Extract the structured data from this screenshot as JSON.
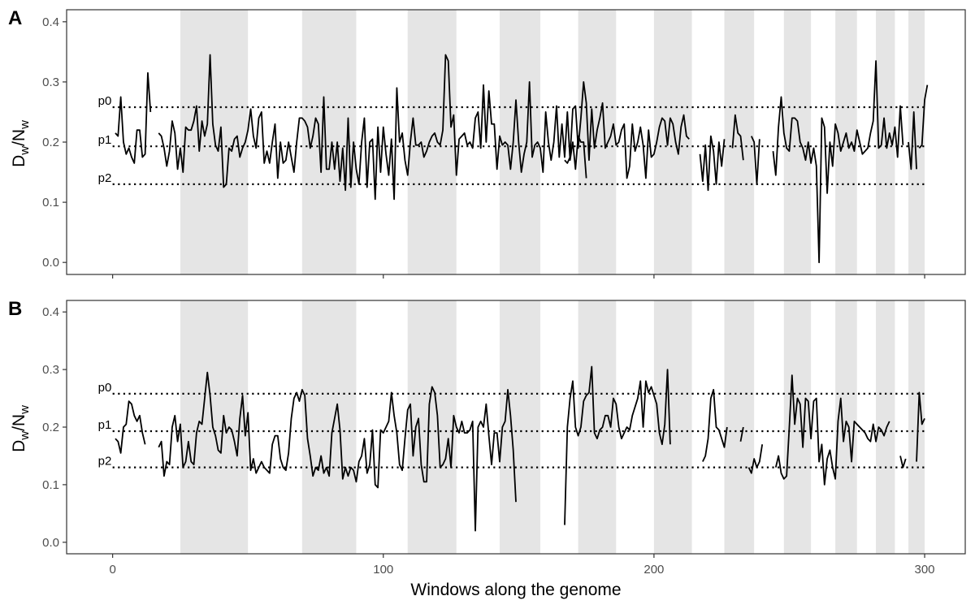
{
  "figure": {
    "xlabel": "Windows along the genome",
    "ylabel_main": "D",
    "ylabel_sub": "w",
    "ylabel_slash": "/N",
    "ylabel_sub2": "w"
  },
  "chart_data": [
    {
      "type": "line",
      "panel_label": "A",
      "xlim": [
        -17,
        315
      ],
      "ylim": [
        -0.02,
        0.42
      ],
      "x_ticks": [
        0,
        100,
        200,
        300
      ],
      "y_ticks": [
        0.0,
        0.1,
        0.2,
        0.3,
        0.4
      ],
      "y_tick_labels": [
        "0.0",
        "0.1",
        "0.2",
        "0.3",
        "0.4"
      ],
      "show_x_tick_labels": false,
      "shaded_regions": [
        [
          25,
          50
        ],
        [
          70,
          90
        ],
        [
          109,
          127
        ],
        [
          143,
          158
        ],
        [
          172,
          186
        ],
        [
          200,
          214
        ],
        [
          226,
          237
        ],
        [
          248,
          258
        ],
        [
          267,
          275
        ],
        [
          282,
          289
        ],
        [
          294,
          300
        ]
      ],
      "reference_lines": [
        {
          "label": "p0",
          "y": 0.258
        },
        {
          "label": "p1",
          "y": 0.193
        },
        {
          "label": "p2",
          "y": 0.13
        }
      ],
      "series": [
        {
          "segments": [
            {
              "x_start": 1,
              "values": [
                0.215,
                0.21,
                0.275,
                0.2,
                0.18,
                0.19,
                0.175,
                0.165,
                0.22,
                0.22,
                0.175,
                0.18,
                0.315,
                0.25
              ]
            },
            {
              "x_start": 17,
              "values": [
                0.215,
                0.21,
                0.19,
                0.16,
                0.185,
                0.235,
                0.215,
                0.155,
                0.19,
                0.15,
                0.225,
                0.22,
                0.22,
                0.235,
                0.26,
                0.185,
                0.235,
                0.21,
                0.23,
                0.345,
                0.23,
                0.195,
                0.185,
                0.225,
                0.125,
                0.13,
                0.19,
                0.185,
                0.205,
                0.21,
                0.175,
                0.19,
                0.2,
                0.22,
                0.255,
                0.21,
                0.19,
                0.24,
                0.25,
                0.165,
                0.185,
                0.165,
                0.2,
                0.23,
                0.14,
                0.2,
                0.165,
                0.17,
                0.2,
                0.175,
                0.15,
                0.2,
                0.24,
                0.24,
                0.235,
                0.225,
                0.19,
                0.21,
                0.24,
                0.23,
                0.15,
                0.275,
                0.155,
                0.155,
                0.2,
                0.155,
                0.2,
                0.135,
                0.19,
                0.12,
                0.24,
                0.125,
                0.2,
                0.155,
                0.13,
                0.2,
                0.24,
                0.125,
                0.2,
                0.205,
                0.105,
                0.225,
                0.15,
                0.225,
                0.18,
                0.145,
                0.205,
                0.105,
                0.29,
                0.2,
                0.215,
                0.17,
                0.145,
                0.2,
                0.24,
                0.195,
                0.195,
                0.2,
                0.175,
                0.185,
                0.2,
                0.21,
                0.215,
                0.2,
                0.195,
                0.22,
                0.345,
                0.335,
                0.225,
                0.245,
                0.145,
                0.205,
                0.21,
                0.215,
                0.195,
                0.2,
                0.19,
                0.24,
                0.25,
                0.19,
                0.295,
                0.2,
                0.285,
                0.23,
                0.23,
                0.155,
                0.21,
                0.195,
                0.2,
                0.195,
                0.155,
                0.2,
                0.27,
                0.2,
                0.15,
                0.18,
                0.2,
                0.3,
                0.175,
                0.195,
                0.2,
                0.19,
                0.15,
                0.25,
                0.2,
                0.17,
                0.2,
                0.26,
                0.175,
                0.23,
                0.175,
                0.25,
                0.17,
                0.2,
                0.155,
                0.21,
                0.2,
                0.2,
                0.14
              ]
            },
            {
              "x_start": 167,
              "values": [
                0.17,
                0.165,
                0.175,
                0.255,
                0.26,
                0.19,
                0.24,
                0.3,
                0.265,
                0.17,
                0.255,
                0.19,
                0.22,
                0.24,
                0.265,
                0.19,
                0.2,
                0.21,
                0.23,
                0.195,
                0.2,
                0.22,
                0.23,
                0.14,
                0.16,
                0.23,
                0.185,
                0.2,
                0.225,
                0.195,
                0.14,
                0.22,
                0.175,
                0.18,
                0.2,
                0.225,
                0.24,
                0.235,
                0.195,
                0.24,
                0.23,
                0.2,
                0.18,
                0.225,
                0.245,
                0.21,
                0.205
              ]
            },
            {
              "x_start": 217,
              "values": [
                0.18,
                0.135,
                0.195,
                0.12,
                0.21,
                0.185,
                0.13,
                0.2,
                0.16,
                0.205
              ]
            },
            {
              "x_start": 229,
              "values": [
                0.19,
                0.245,
                0.215,
                0.21,
                0.17
              ]
            },
            {
              "x_start": 236,
              "values": [
                0.21,
                0.2,
                0.13,
                0.205
              ]
            },
            {
              "x_start": 244,
              "values": [
                0.185,
                0.145,
                0.225,
                0.275,
                0.215,
                0.19,
                0.185,
                0.24,
                0.24,
                0.235,
                0.2,
                0.19,
                0.17,
                0.2,
                0.165,
                0.19,
                0.16,
                0.0,
                0.24,
                0.225,
                0.115,
                0.2,
                0.16,
                0.23,
                0.215,
                0.185,
                0.2,
                0.215,
                0.19,
                0.2,
                0.185,
                0.22,
                0.2,
                0.18,
                0.185,
                0.19,
                0.215,
                0.235,
                0.335,
                0.19,
                0.195,
                0.24,
                0.19,
                0.215,
                0.195,
                0.225,
                0.175,
                0.26,
                0.195
              ]
            },
            {
              "x_start": 294,
              "values": [
                0.2,
                0.155,
                0.25,
                0.155
              ]
            },
            {
              "x_start": 298,
              "values": [
                0.19,
                0.195,
                0.27,
                0.295
              ]
            }
          ]
        }
      ]
    },
    {
      "type": "line",
      "panel_label": "B",
      "xlim": [
        -17,
        315
      ],
      "ylim": [
        -0.02,
        0.42
      ],
      "x_ticks": [
        0,
        100,
        200,
        300
      ],
      "x_tick_labels": [
        "0",
        "100",
        "200",
        "300"
      ],
      "y_ticks": [
        0.0,
        0.1,
        0.2,
        0.3,
        0.4
      ],
      "y_tick_labels": [
        "0.0",
        "0.1",
        "0.2",
        "0.3",
        "0.4"
      ],
      "show_x_tick_labels": true,
      "shaded_regions": [
        [
          25,
          50
        ],
        [
          70,
          90
        ],
        [
          109,
          127
        ],
        [
          143,
          158
        ],
        [
          172,
          186
        ],
        [
          200,
          214
        ],
        [
          226,
          237
        ],
        [
          248,
          258
        ],
        [
          267,
          275
        ],
        [
          282,
          289
        ],
        [
          294,
          300
        ]
      ],
      "reference_lines": [
        {
          "label": "p0",
          "y": 0.258
        },
        {
          "label": "p1",
          "y": 0.193
        },
        {
          "label": "p2",
          "y": 0.13
        }
      ],
      "series": [
        {
          "segments": [
            {
              "x_start": 1,
              "values": [
                0.18,
                0.175,
                0.155,
                0.2,
                0.205,
                0.245,
                0.24,
                0.22,
                0.21,
                0.22,
                0.19,
                0.17
              ]
            },
            {
              "x_start": 17,
              "values": [
                0.165,
                0.175,
                0.115,
                0.14,
                0.135,
                0.2,
                0.22,
                0.175,
                0.205,
                0.13,
                0.14,
                0.175,
                0.14,
                0.135,
                0.19,
                0.21,
                0.205,
                0.25,
                0.295,
                0.255,
                0.2,
                0.185,
                0.16,
                0.155,
                0.22,
                0.19,
                0.2,
                0.195,
                0.175,
                0.15,
                0.215,
                0.255,
                0.185,
                0.225,
                0.125,
                0.145,
                0.12,
                0.13,
                0.14,
                0.13,
                0.125,
                0.12,
                0.17,
                0.185,
                0.185,
                0.145,
                0.13,
                0.125,
                0.155,
                0.215,
                0.25,
                0.26,
                0.245,
                0.265,
                0.255,
                0.18,
                0.15,
                0.115,
                0.13,
                0.125,
                0.15,
                0.12,
                0.13,
                0.115,
                0.19,
                0.215,
                0.24,
                0.195,
                0.11,
                0.13,
                0.115,
                0.13,
                0.125,
                0.105,
                0.14,
                0.15,
                0.18,
                0.12,
                0.135,
                0.195,
                0.1,
                0.095,
                0.195,
                0.19,
                0.2,
                0.21,
                0.26,
                0.22,
                0.19,
                0.135,
                0.125,
                0.18,
                0.23,
                0.24,
                0.15,
                0.2,
                0.215,
                0.135,
                0.105,
                0.105,
                0.24,
                0.27,
                0.26,
                0.22,
                0.13,
                0.135,
                0.145,
                0.18,
                0.13,
                0.22,
                0.2,
                0.19,
                0.21,
                0.19,
                0.19,
                0.195,
                0.21,
                0.02,
                0.2,
                0.21,
                0.2,
                0.24,
                0.185,
                0.135,
                0.19,
                0.19,
                0.14,
                0.2,
                0.21,
                0.265,
                0.22,
                0.16,
                0.07
              ]
            },
            {
              "x_start": 167,
              "values": [
                0.03,
                0.2,
                0.25,
                0.28,
                0.2,
                0.185,
                0.2,
                0.245,
                0.255,
                0.26,
                0.305,
                0.19,
                0.18,
                0.195,
                0.2,
                0.22,
                0.22,
                0.2,
                0.25,
                0.24,
                0.2,
                0.18,
                0.19,
                0.2,
                0.195,
                0.22,
                0.235,
                0.25,
                0.28,
                0.2,
                0.28,
                0.26,
                0.27,
                0.255,
                0.24,
                0.19,
                0.17,
                0.205,
                0.3,
                0.17
              ]
            },
            {
              "x_start": 218,
              "values": [
                0.14,
                0.15,
                0.18,
                0.25,
                0.265,
                0.2,
                0.195,
                0.18,
                0.165,
                0.2
              ]
            },
            {
              "x_start": 232,
              "values": [
                0.175,
                0.2
              ]
            },
            {
              "x_start": 235,
              "values": [
                0.13,
                0.12,
                0.145,
                0.13,
                0.14,
                0.17
              ]
            },
            {
              "x_start": 245,
              "values": [
                0.13,
                0.15,
                0.12,
                0.11,
                0.115,
                0.2,
                0.29,
                0.205,
                0.25,
                0.24,
                0.165,
                0.25,
                0.245,
                0.18,
                0.245,
                0.25,
                0.14,
                0.17,
                0.1,
                0.145,
                0.16,
                0.13,
                0.11,
                0.21,
                0.25,
                0.175,
                0.21,
                0.2,
                0.14,
                0.21,
                0.205,
                0.2,
                0.195,
                0.19,
                0.18,
                0.175,
                0.205,
                0.175,
                0.2,
                0.195,
                0.185,
                0.2,
                0.21
              ]
            },
            {
              "x_start": 291,
              "values": [
                0.15,
                0.13,
                0.145
              ]
            },
            {
              "x_start": 297,
              "values": [
                0.14,
                0.26,
                0.205,
                0.215
              ]
            }
          ]
        }
      ]
    }
  ]
}
